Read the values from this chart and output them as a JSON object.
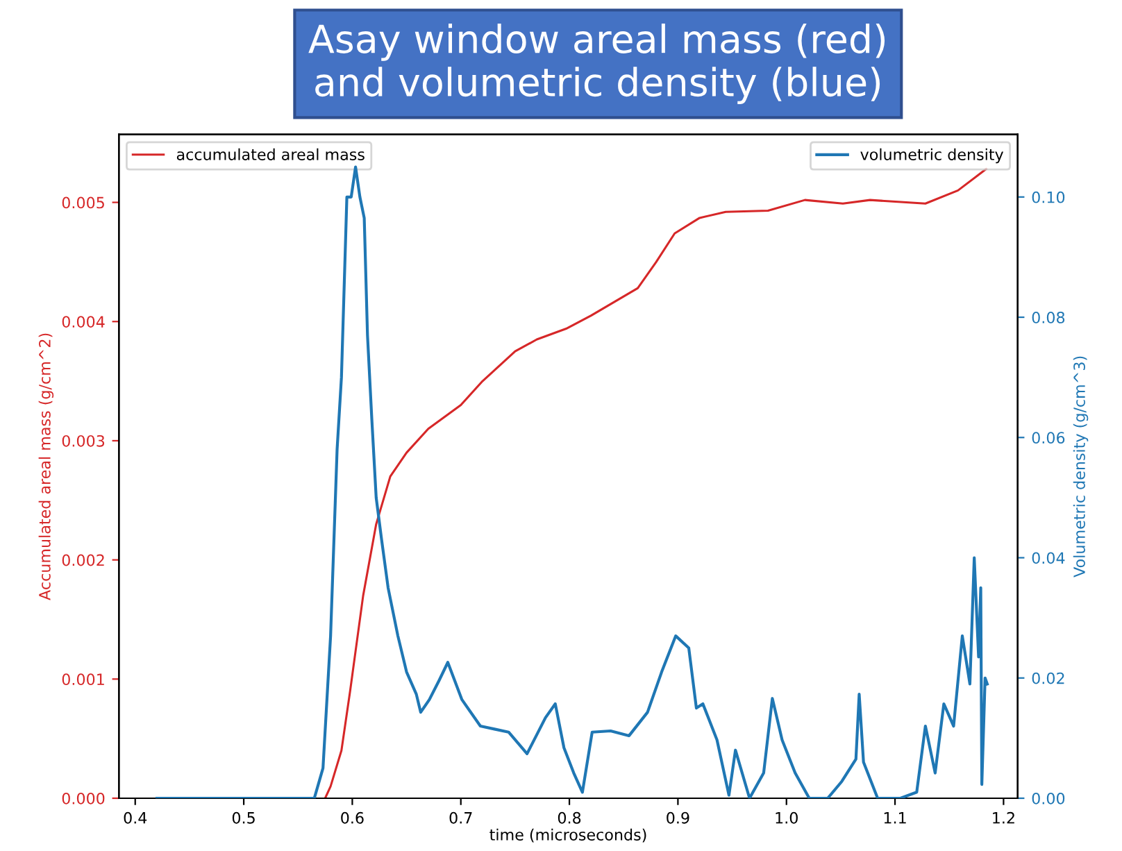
{
  "chart_data": {
    "type": "line",
    "title": "Asay window areal mass (red)\nand volumetric density (blue)",
    "xlabel": "time (microseconds)",
    "ylabel": "Accumulated areal mass (g/cm^2)",
    "y2label": "Volumetric density (g/cm^3)",
    "xlim": [
      0.385,
      1.213
    ],
    "xticks": [
      {
        "value": 0.4,
        "label": "0.4"
      },
      {
        "value": 0.5,
        "label": "0.5"
      },
      {
        "value": 0.6,
        "label": "0.6"
      },
      {
        "value": 0.7,
        "label": "0.7"
      },
      {
        "value": 0.8,
        "label": "0.8"
      },
      {
        "value": 0.9,
        "label": "0.9"
      },
      {
        "value": 1.0,
        "label": "1.0"
      },
      {
        "value": 1.1,
        "label": "1.1"
      },
      {
        "value": 1.2,
        "label": "1.2"
      }
    ],
    "ylim": [
      0,
      0.00557
    ],
    "yticks": [
      {
        "value": 0,
        "label": "0.000"
      },
      {
        "value": 0.001,
        "label": "0.001"
      },
      {
        "value": 0.002,
        "label": "0.002"
      },
      {
        "value": 0.003,
        "label": "0.003"
      },
      {
        "value": 0.004,
        "label": "0.004"
      },
      {
        "value": 0.005,
        "label": "0.005"
      }
    ],
    "y2lim": [
      0,
      0.1104
    ],
    "y2ticks": [
      {
        "value": 0,
        "label": "0.00"
      },
      {
        "value": 0.02,
        "label": "0.02"
      },
      {
        "value": 0.04,
        "label": "0.04"
      },
      {
        "value": 0.06,
        "label": "0.06"
      },
      {
        "value": 0.08,
        "label": "0.08"
      },
      {
        "value": 0.1,
        "label": "0.10"
      }
    ],
    "legend": "top left",
    "grid": false,
    "marker": "none",
    "line_style": "solid",
    "series": [
      {
        "name": "accumulated areal mass",
        "color": "#d62728",
        "x": [
          0.575,
          0.58,
          0.59,
          0.598,
          0.61,
          0.622,
          0.635,
          0.65,
          0.67,
          0.7,
          0.72,
          0.75,
          0.77,
          0.797,
          0.82,
          0.863,
          0.88,
          0.897,
          0.92,
          0.944,
          0.983,
          1.017,
          1.052,
          1.077,
          1.128,
          1.158,
          1.184
        ],
        "values": [
          0,
          0.0001,
          0.0004,
          0.0009,
          0.0017,
          0.0023,
          0.0027,
          0.0029,
          0.0031,
          0.0033,
          0.0035,
          0.00375,
          0.00385,
          0.00394,
          0.00405,
          0.00428,
          0.0045,
          0.00474,
          0.00487,
          0.00492,
          0.00493,
          0.00502,
          0.00499,
          0.00502,
          0.00499,
          0.0051,
          0.00528
        ]
      },
      {
        "name": "volumetric density",
        "color": "#1f77b4",
        "axis": "y2",
        "x": [
          0.42,
          0.5,
          0.565,
          0.573,
          0.58,
          0.586,
          0.59,
          0.595,
          0.599,
          0.603,
          0.607,
          0.611,
          0.614,
          0.618,
          0.622,
          0.627,
          0.633,
          0.642,
          0.65,
          0.659,
          0.663,
          0.671,
          0.68,
          0.688,
          0.701,
          0.718,
          0.731,
          0.744,
          0.761,
          0.778,
          0.787,
          0.795,
          0.804,
          0.812,
          0.821,
          0.838,
          0.855,
          0.872,
          0.885,
          0.898,
          0.91,
          0.917,
          0.923,
          0.936,
          0.947,
          0.953,
          0.966,
          0.979,
          0.987,
          0.996,
          1.008,
          1.021,
          1.038,
          1.051,
          1.064,
          1.067,
          1.071,
          1.084,
          1.105,
          1.12,
          1.128,
          1.137,
          1.145,
          1.154,
          1.162,
          1.169,
          1.173,
          1.177,
          1.179,
          1.18,
          1.183,
          1.185
        ],
        "values": [
          0,
          0,
          0,
          0.005,
          0.027,
          0.058,
          0.07,
          0.1,
          0.1,
          0.105,
          0.1,
          0.0965,
          0.077,
          0.063,
          0.05,
          0.043,
          0.035,
          0.027,
          0.021,
          0.0173,
          0.0143,
          0.0164,
          0.0196,
          0.0226,
          0.0164,
          0.012,
          0.0115,
          0.011,
          0.0074,
          0.0134,
          0.0157,
          0.0084,
          0.0042,
          0.001,
          0.011,
          0.0112,
          0.0104,
          0.0143,
          0.021,
          0.027,
          0.025,
          0.015,
          0.0157,
          0.0097,
          0.0005,
          0.008,
          0,
          0.0042,
          0.0166,
          0.0097,
          0.0042,
          0,
          0,
          0.0028,
          0.0065,
          0.0173,
          0.006,
          0,
          0,
          0.001,
          0.012,
          0.0042,
          0.0157,
          0.012,
          0.027,
          0.019,
          0.04,
          0.0235,
          0.035,
          0.0023,
          0.02,
          0.019
        ]
      }
    ]
  }
}
